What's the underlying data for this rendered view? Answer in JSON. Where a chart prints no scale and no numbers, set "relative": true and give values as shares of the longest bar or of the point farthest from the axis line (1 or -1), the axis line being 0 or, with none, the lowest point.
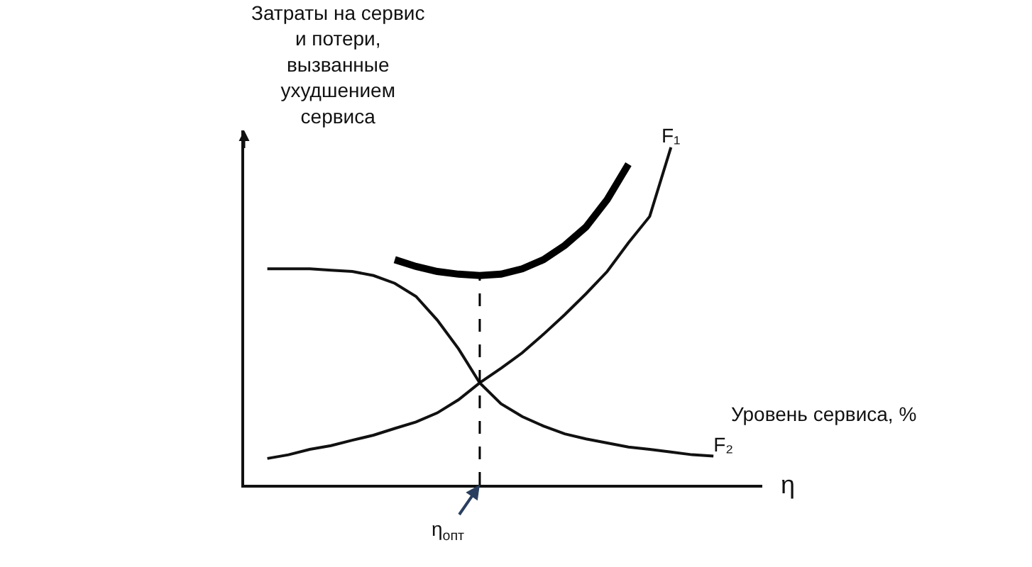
{
  "chart_data": {
    "type": "line",
    "relative": true,
    "xlabel": "η",
    "ylabel": "Затраты на сервис\nи потери,\nвызванные\nухудшением\nсервиса",
    "legend": false,
    "marker": "none",
    "line_style": "solid",
    "categories": [
      null,
      null,
      null,
      null,
      null,
      null,
      null,
      null,
      null,
      null,
      null,
      null,
      null,
      null,
      null,
      null,
      null,
      null,
      null,
      null,
      null,
      null
    ],
    "series": [
      {
        "name": "F₁",
        "color": "#111111",
        "values": [
          0.078,
          0.089,
          0.105,
          0.116,
          0.132,
          0.147,
          0.167,
          0.186,
          0.213,
          0.252,
          0.302,
          0.345,
          0.391,
          0.446,
          0.504,
          0.566,
          0.632,
          0.717,
          0.795,
          1,
          null,
          null
        ]
      },
      {
        "name": "F₂",
        "color": "#111111",
        "values": [
          0.64,
          0.64,
          0.64,
          0.636,
          0.632,
          0.62,
          0.597,
          0.558,
          0.488,
          0.403,
          0.302,
          0.24,
          0.202,
          0.174,
          0.151,
          0.136,
          0.124,
          0.112,
          0.105,
          0.097,
          0.089,
          0.085
        ]
      },
      {
        "color": "#000000",
        "values": [
          null,
          null,
          null,
          null,
          null,
          null,
          0.667,
          0.647,
          0.632,
          0.624,
          0.62,
          0.624,
          0.64,
          0.667,
          0.709,
          0.764,
          0.845,
          0.95,
          null,
          null,
          null,
          null
        ]
      }
    ],
    "annotations": [
      "η$_{опт}$",
      "Уровень сервиса, %"
    ]
  }
}
